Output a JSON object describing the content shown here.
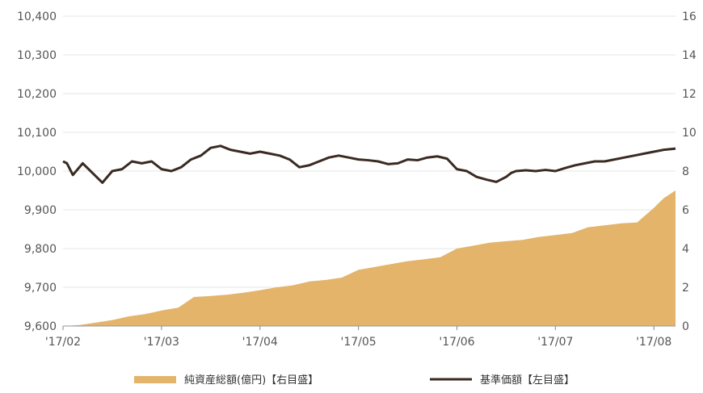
{
  "chart_data": {
    "type": "area",
    "x_ticks": [
      "'17/02",
      "'17/03",
      "'17/04",
      "'17/05",
      "'17/06",
      "'17/07",
      "'17/08"
    ],
    "y_left": {
      "ticks": [
        "9,600",
        "9,700",
        "9,800",
        "9,900",
        "10,000",
        "10,100",
        "10,200",
        "10,300",
        "10,400"
      ],
      "range": [
        9600,
        10400
      ]
    },
    "y_right": {
      "ticks": [
        "0",
        "2",
        "4",
        "6",
        "8",
        "10",
        "12",
        "14",
        "16"
      ],
      "range": [
        0,
        16
      ]
    },
    "x_range": [
      0,
      6.22
    ],
    "legend_position": "bottom",
    "series": [
      {
        "name": "純資産総額(億円)【右目盛】",
        "type": "area",
        "axis": "right",
        "color": "#e3b46a",
        "x": [
          0,
          0.17,
          0.34,
          0.51,
          0.67,
          0.84,
          1.0,
          1.17,
          1.33,
          1.5,
          1.67,
          1.83,
          2.0,
          2.17,
          2.33,
          2.5,
          2.67,
          2.83,
          3.0,
          3.17,
          3.33,
          3.5,
          3.67,
          3.83,
          4.0,
          4.17,
          4.33,
          4.5,
          4.67,
          4.83,
          5.0,
          5.17,
          5.33,
          5.5,
          5.67,
          5.83,
          6.0,
          6.1,
          6.22
        ],
        "values": [
          0.0,
          0.05,
          0.18,
          0.32,
          0.5,
          0.62,
          0.8,
          0.95,
          1.5,
          1.55,
          1.62,
          1.72,
          1.85,
          2.0,
          2.1,
          2.3,
          2.38,
          2.5,
          2.9,
          3.05,
          3.2,
          3.35,
          3.45,
          3.55,
          4.0,
          4.15,
          4.3,
          4.38,
          4.45,
          4.6,
          4.7,
          4.8,
          5.1,
          5.2,
          5.3,
          5.35,
          6.1,
          6.6,
          7.0
        ]
      },
      {
        "name": "基準価額【左目盛】",
        "type": "line",
        "axis": "left",
        "color": "#3a2a22",
        "x": [
          0,
          0.04,
          0.1,
          0.2,
          0.3,
          0.4,
          0.5,
          0.6,
          0.7,
          0.8,
          0.9,
          1.0,
          1.1,
          1.2,
          1.3,
          1.4,
          1.5,
          1.6,
          1.7,
          1.8,
          1.9,
          2.0,
          2.1,
          2.2,
          2.3,
          2.4,
          2.5,
          2.6,
          2.7,
          2.8,
          2.9,
          3.0,
          3.1,
          3.2,
          3.3,
          3.4,
          3.5,
          3.6,
          3.7,
          3.8,
          3.9,
          4.0,
          4.1,
          4.2,
          4.3,
          4.4,
          4.5,
          4.55,
          4.6,
          4.7,
          4.8,
          4.9,
          5.0,
          5.1,
          5.2,
          5.3,
          5.4,
          5.5,
          5.6,
          5.7,
          5.8,
          5.9,
          6.0,
          6.1,
          6.22
        ],
        "values": [
          10025,
          10020,
          9990,
          10020,
          9995,
          9970,
          10000,
          10005,
          10025,
          10020,
          10025,
          10005,
          10000,
          10010,
          10030,
          10040,
          10060,
          10065,
          10055,
          10050,
          10045,
          10050,
          10045,
          10040,
          10030,
          10010,
          10015,
          10025,
          10035,
          10040,
          10035,
          10030,
          10028,
          10025,
          10018,
          10020,
          10030,
          10028,
          10035,
          10038,
          10032,
          10005,
          10000,
          9985,
          9978,
          9972,
          9985,
          9995,
          10000,
          10002,
          10000,
          10003,
          10000,
          10008,
          10015,
          10020,
          10025,
          10025,
          10030,
          10035,
          10040,
          10045,
          10050,
          10055,
          10058
        ]
      }
    ]
  }
}
